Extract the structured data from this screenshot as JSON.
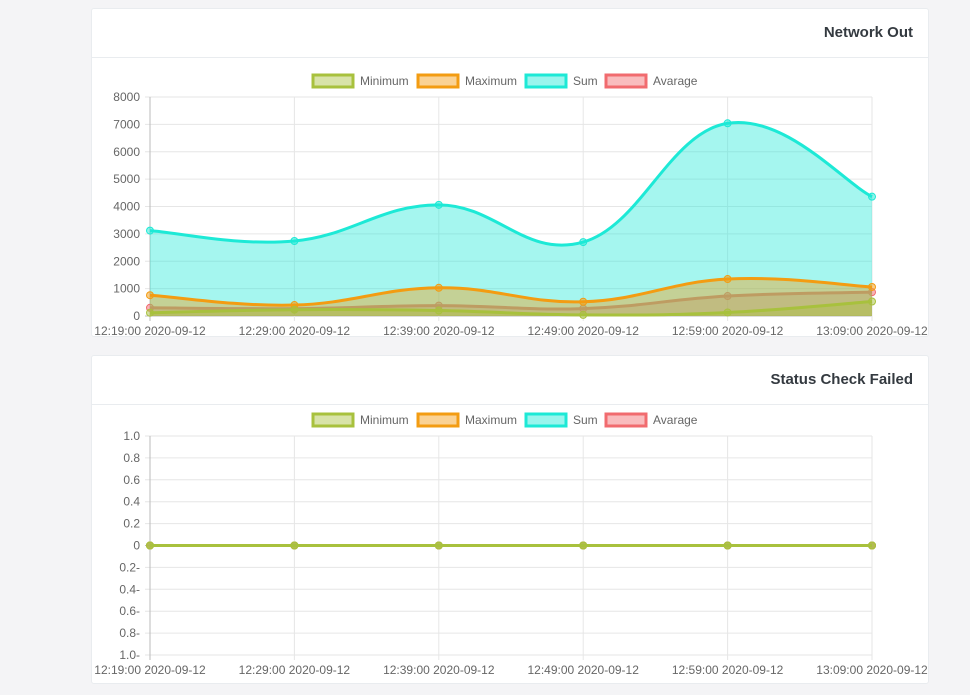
{
  "chart_data": [
    {
      "type": "area",
      "title": "Network Out",
      "categories": [
        "12:19:00 2020-09-12",
        "12:29:00 2020-09-12",
        "12:39:00 2020-09-12",
        "12:49:00 2020-09-12",
        "12:59:00 2020-09-12",
        "13:09:00 2020-09-12"
      ],
      "y_ticks": [
        "8000",
        "7000",
        "6000",
        "5000",
        "4000",
        "3000",
        "2000",
        "1000",
        "0"
      ],
      "ylim": [
        0,
        8000
      ],
      "grid": true,
      "legend_position": "top",
      "series": [
        {
          "name": "Minimum",
          "values": [
            120,
            230,
            200,
            40,
            130,
            530
          ],
          "color": "#a8c13d"
        },
        {
          "name": "Maximum",
          "values": [
            760,
            400,
            1030,
            520,
            1350,
            1060
          ],
          "color": "#f39c12"
        },
        {
          "name": "Sum",
          "values": [
            3120,
            2740,
            4060,
            2700,
            7040,
            4360
          ],
          "color": "#1de9d6"
        },
        {
          "name": "Avarage",
          "values": [
            300,
            270,
            380,
            270,
            730,
            870
          ],
          "color": "#f16b6f"
        }
      ]
    },
    {
      "type": "line",
      "title": "Status Check Failed",
      "categories": [
        "12:19:00 2020-09-12",
        "12:29:00 2020-09-12",
        "12:39:00 2020-09-12",
        "12:49:00 2020-09-12",
        "12:59:00 2020-09-12",
        "13:09:00 2020-09-12"
      ],
      "y_ticks": [
        "1.0",
        "0.8",
        "0.6",
        "0.4",
        "0.2",
        "0",
        "0.2-",
        "0.4-",
        "0.6-",
        "0.8-",
        "1.0-"
      ],
      "ylim": [
        -1,
        1
      ],
      "grid": true,
      "legend_position": "top",
      "series": [
        {
          "name": "Minimum",
          "values": [
            0,
            0,
            0,
            0,
            0,
            0
          ],
          "color": "#a8c13d"
        },
        {
          "name": "Maximum",
          "values": [
            0,
            0,
            0,
            0,
            0,
            0
          ],
          "color": "#f39c12"
        },
        {
          "name": "Sum",
          "values": [
            0,
            0,
            0,
            0,
            0,
            0
          ],
          "color": "#1de9d6"
        },
        {
          "name": "Avarage",
          "values": [
            0,
            0,
            0,
            0,
            0,
            0
          ],
          "color": "#f16b6f"
        }
      ]
    }
  ]
}
